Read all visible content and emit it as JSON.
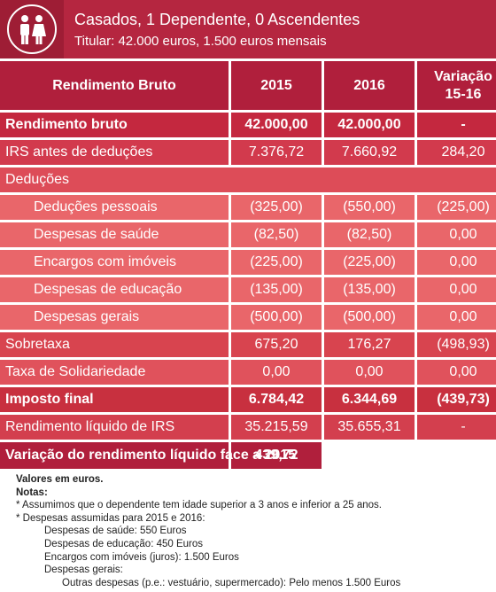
{
  "header": {
    "title": "Casados, 1 Dependente, 0 Ascendentes",
    "subtitle": "Titular: 42.000 euros, 1.500 euros mensais"
  },
  "table": {
    "columns": [
      "Rendimento Bruto",
      "2015",
      "2016",
      "Variação 15-16"
    ],
    "rows": [
      [
        "Rendimento bruto",
        "42.000,00",
        "42.000,00",
        "-"
      ],
      [
        "IRS antes de deduções",
        "7.376,72",
        "7.660,92",
        "284,20"
      ],
      [
        "Deduções"
      ],
      [
        "Deduções pessoais",
        "(325,00)",
        "(550,00)",
        "(225,00)"
      ],
      [
        "Despesas de saúde",
        "(82,50)",
        "(82,50)",
        "0,00"
      ],
      [
        "Encargos com imóveis",
        "(225,00)",
        "(225,00)",
        "0,00"
      ],
      [
        "Despesas de educação",
        "(135,00)",
        "(135,00)",
        "0,00"
      ],
      [
        "Despesas gerais",
        "(500,00)",
        "(500,00)",
        "0,00"
      ],
      [
        "Sobretaxa",
        "675,20",
        "176,27",
        "(498,93)"
      ],
      [
        "Taxa de Solidariedade",
        "0,00",
        "0,00",
        "0,00"
      ],
      [
        "Imposto final",
        "6.784,42",
        "6.344,69",
        "(439,73)"
      ],
      [
        "Rendimento líquido de IRS",
        "35.215,59",
        "35.655,31",
        "-"
      ]
    ],
    "total": [
      "Variação do rendimento líquido face a 2015",
      "439,72"
    ]
  },
  "notes": {
    "units": "Valores em euros.",
    "heading": "Notas:",
    "items": [
      "* Assumimos que o dependente tem idade superior a 3 anos e inferior a 25 anos.",
      "* Despesas assumidas para 2015 e 2016:"
    ],
    "expenses": [
      "Despesas de saúde: 550 Euros",
      "Despesas de educação: 450 Euros",
      "Encargos com imóveis (juros): 1.500 Euros",
      "Despesas gerais:"
    ],
    "general": [
      "Outras despesas (p.e.: vestuário, supermercado): Pelo menos 1.500 Euros"
    ]
  }
}
